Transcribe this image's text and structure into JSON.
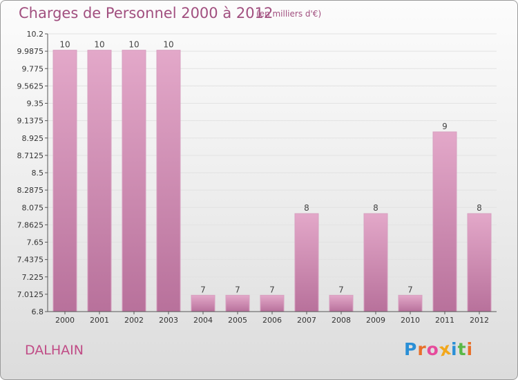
{
  "header": {
    "title": "Charges de Personnel 2000 à 2012",
    "subtitle": "(en milliers d'€)"
  },
  "place_name": "DALHAIN",
  "logo": {
    "text": "Proxiti",
    "colors": [
      "#2a8fd6",
      "#e8702a",
      "#e64b9c",
      "#f2a71b",
      "#2a8fd6",
      "#59b847",
      "#e8702a"
    ]
  },
  "colors": {
    "bar": "#c97aa8",
    "bar_light": "#e0a3c6",
    "text_accent": "#a14f7f"
  },
  "chart_data": {
    "type": "bar",
    "categories": [
      "2000",
      "2001",
      "2002",
      "2003",
      "2004",
      "2005",
      "2006",
      "2007",
      "2008",
      "2009",
      "2010",
      "2011",
      "2012"
    ],
    "values": [
      10,
      10,
      10,
      10,
      7,
      7,
      7,
      8,
      7,
      8,
      7,
      9,
      8
    ],
    "data_labels": [
      "10",
      "10",
      "10",
      "10",
      "7",
      "7",
      "7",
      "8",
      "7",
      "8",
      "7",
      "9",
      "8"
    ],
    "ylim": [
      6.8,
      10.2
    ],
    "yticks": [
      "6.8",
      "7.0125",
      "7.225",
      "7.4375",
      "7.65",
      "7.8625",
      "8.075",
      "8.2875",
      "8.5",
      "8.7125",
      "8.925",
      "9.1375",
      "9.35",
      "9.5625",
      "9.775",
      "9.9875",
      "10.2"
    ],
    "ytick_values": [
      6.8,
      7.0125,
      7.225,
      7.4375,
      7.65,
      7.8625,
      8.075,
      8.2875,
      8.5,
      8.7125,
      8.925,
      9.1375,
      9.35,
      9.5625,
      9.775,
      9.9875,
      10.2
    ],
    "grid": true,
    "xlabel": "",
    "ylabel": ""
  }
}
